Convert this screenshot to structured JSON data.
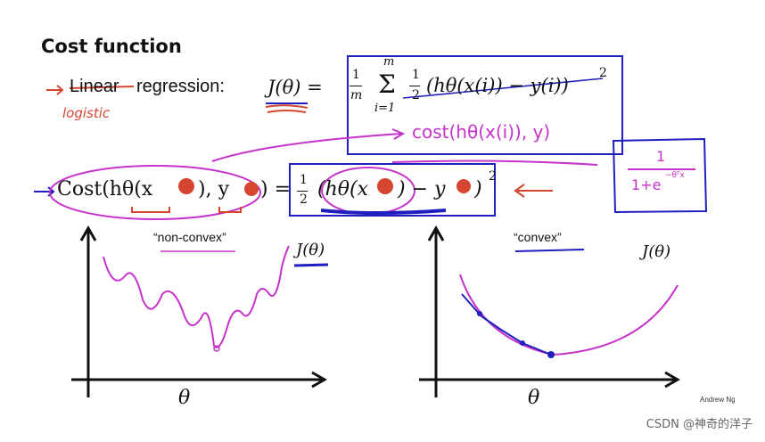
{
  "slide": {
    "title": "Cost function",
    "linear_word": "Linear",
    "regression_word": "regression:",
    "logistic_note": "logistic",
    "j_theta": "J(θ) =",
    "sum_frac": "1",
    "sum_den": "m",
    "sum_top": "m",
    "sum_bottom": "i=1",
    "half_num": "1",
    "half_den": "2",
    "squared_term": "(hθ(x(i)) − y(i))",
    "squared_exp": "2",
    "cost_note": "cost(hθ(x(i)), y)",
    "cost_lhs": "Cost(hθ(x",
    "cost_lhs_y": "), y",
    "cost_lhs_close": ") =",
    "cost_rhs": "(hθ(x",
    "cost_rhs_mid": ") − y",
    "cost_rhs_close": ")",
    "sigmoid_num": "1",
    "sigmoid_den": "1+e",
    "sigmoid_exp": "−θᵀx",
    "nonconvex_label": "“non-convex”",
    "convex_label": "“convex”",
    "left_axis_y": "J(θ)",
    "right_axis_y": "J(θ)",
    "left_axis_x": "θ",
    "right_axis_x": "θ",
    "credit": "Andrew Ng"
  },
  "watermark": "CSDN @神奇的洋子",
  "colors": {
    "ink": "#111111",
    "red": "#d6452f",
    "magenta": "#c633c9",
    "blue": "#1f1fbf"
  }
}
